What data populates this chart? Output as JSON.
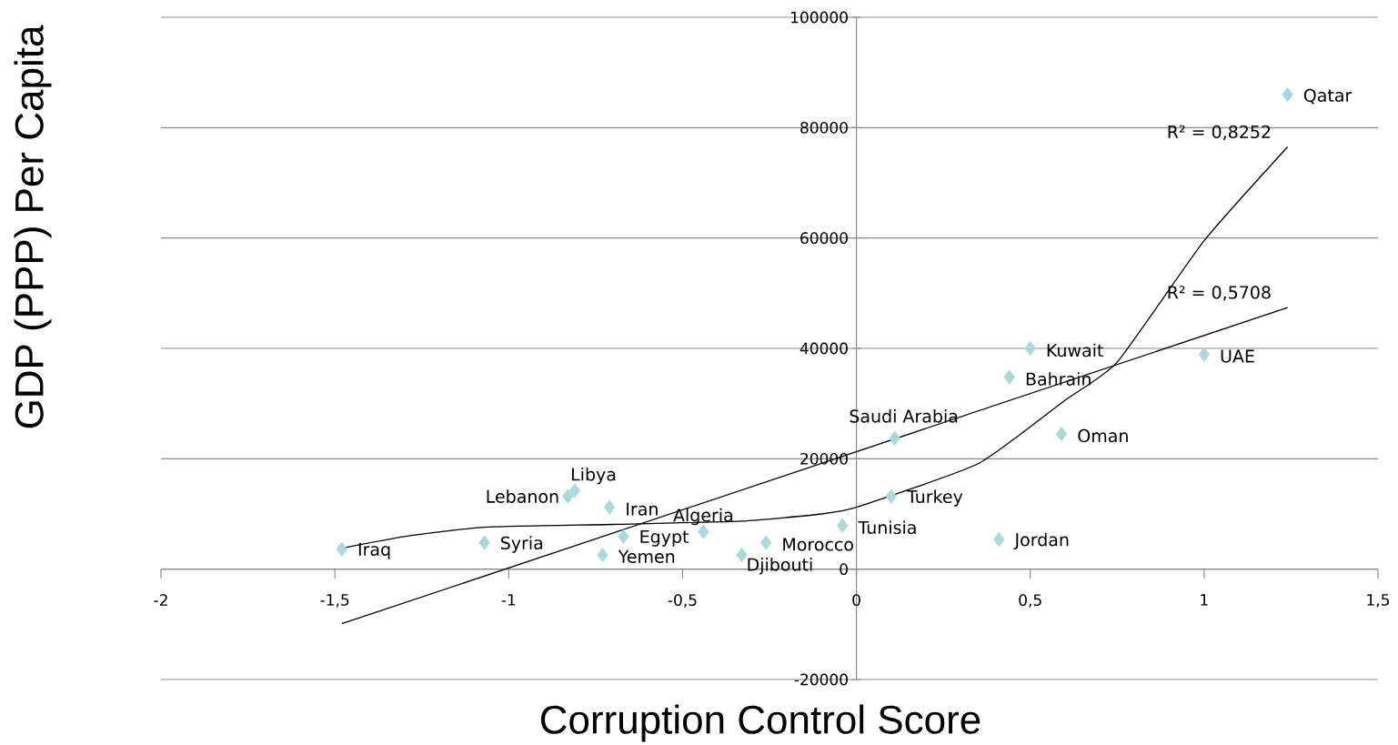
{
  "chart_data": {
    "type": "scatter",
    "xlabel": "Corruption Control Score",
    "ylabel": "GDP (PPP) Per Capita",
    "xlim": [
      -2,
      1.5
    ],
    "xticks": [
      {
        "value": -2,
        "label": "-2"
      },
      {
        "value": -1.5,
        "label": "-1,5"
      },
      {
        "value": -1,
        "label": "-1"
      },
      {
        "value": -0.5,
        "label": "-0,5"
      },
      {
        "value": 0,
        "label": "0"
      },
      {
        "value": 0.5,
        "label": "0,5"
      },
      {
        "value": 1,
        "label": "1"
      },
      {
        "value": 1.5,
        "label": "1,5"
      }
    ],
    "ylim": [
      -20000,
      100000
    ],
    "yticks": [
      -20000,
      0,
      20000,
      40000,
      60000,
      80000,
      100000
    ],
    "grid": "y",
    "series": [
      {
        "color": "#a9d9dc",
        "marker": "diamond",
        "x": [
          -1.48,
          -1.07,
          -0.81,
          -0.83,
          -0.71,
          -0.67,
          -0.73,
          -0.44,
          -0.33,
          -0.26,
          -0.04,
          0.1,
          0.11,
          0.41,
          0.44,
          0.5,
          0.59,
          1.0,
          1.24
        ],
        "values": [
          3600,
          4800,
          14200,
          13200,
          11200,
          5900,
          2600,
          6800,
          2600,
          4800,
          7900,
          13200,
          23700,
          5400,
          34800,
          40000,
          24500,
          38900,
          86000
        ],
        "value_labels": [
          "Iraq",
          "Syria",
          "Libya",
          "Lebanon",
          "Iran",
          "Egypt",
          "Yemen",
          "Algeria",
          "Djibouti",
          "Morocco",
          "Tunisia",
          "Turkey",
          "Saudi Arabia",
          "Jordan",
          "Bahrain",
          "Kuwait",
          "Oman",
          "UAE",
          "Qatar"
        ]
      },
      {
        "type": "line",
        "color": "#000000",
        "marker": "none",
        "line_style": "solid",
        "x": [
          -1.48,
          1.24
        ],
        "values": [
          -9900,
          47400
        ]
      },
      {
        "type": "line",
        "color": "#000000",
        "marker": "none",
        "line_style": "solid",
        "x": [
          -1.48,
          -1.3,
          -1.07,
          -0.7,
          -0.33,
          -0.1,
          0,
          0.35,
          0.6,
          0.75,
          1.0,
          1.24
        ],
        "values": [
          3800,
          5900,
          7600,
          8100,
          8700,
          10000,
          11200,
          19100,
          30600,
          37500,
          59500,
          76500
        ]
      }
    ],
    "annotations": [
      {
        "text": "R² = 0,8252",
        "x": 1.24,
        "y": 76500
      },
      {
        "text": "R² = 0,5708",
        "x": 1.24,
        "y": 47400
      }
    ]
  }
}
